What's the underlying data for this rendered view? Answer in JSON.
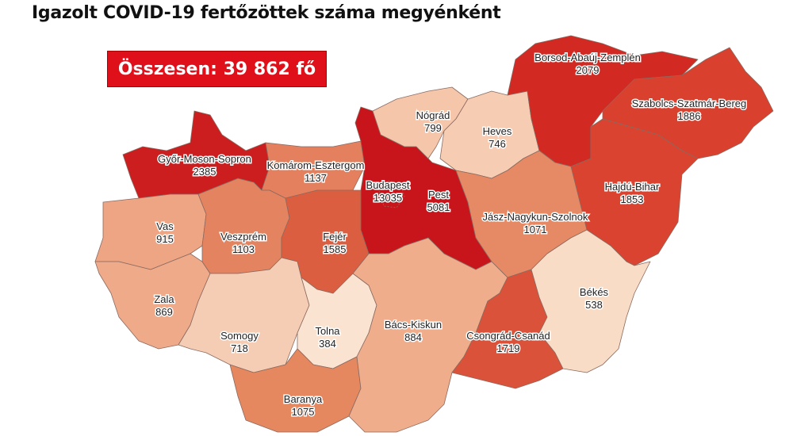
{
  "title": "Igazolt COVID-19 fertőzöttek száma megyénként",
  "total_label": "Összesen: 39 862 fő",
  "accent_color": "#e0101a",
  "regions": [
    {
      "name": "Győr-Moson-Sopron",
      "value": "2385",
      "color": "#cc1d1f"
    },
    {
      "name": "Komárom-Esztergom",
      "value": "1137",
      "color": "#e4805d"
    },
    {
      "name": "Pest",
      "value": "5081",
      "color": "#c8151c"
    },
    {
      "name": "Budapest",
      "value": "13035",
      "color": "#c8151c"
    },
    {
      "name": "Nógrád",
      "value": "799",
      "color": "#f5c6a9"
    },
    {
      "name": "Heves",
      "value": "746",
      "color": "#f6cdb3"
    },
    {
      "name": "Borsod-Abaúj-Zemplén",
      "value": "2079",
      "color": "#d22a22"
    },
    {
      "name": "Szabolcs-Szatmár-Bereg",
      "value": "1886",
      "color": "#d9402e"
    },
    {
      "name": "Hajdú-Bihar",
      "value": "1853",
      "color": "#d9432f"
    },
    {
      "name": "Jász-Nagykun-Szolnok",
      "value": "1071",
      "color": "#e68a66"
    },
    {
      "name": "Vas",
      "value": "915",
      "color": "#eea584"
    },
    {
      "name": "Zala",
      "value": "869",
      "color": "#efaa8a"
    },
    {
      "name": "Veszprém",
      "value": "1103",
      "color": "#e4835f"
    },
    {
      "name": "Fejér",
      "value": "1585",
      "color": "#dc5e40"
    },
    {
      "name": "Somogy",
      "value": "718",
      "color": "#f5cdb4"
    },
    {
      "name": "Tolna",
      "value": "384",
      "color": "#fbe3d2"
    },
    {
      "name": "Baranya",
      "value": "1075",
      "color": "#e5875f"
    },
    {
      "name": "Bács-Kiskun",
      "value": "884",
      "color": "#efad8c"
    },
    {
      "name": "Csongrád-Csanád",
      "value": "1719",
      "color": "#da5239"
    },
    {
      "name": "Békés",
      "value": "538",
      "color": "#f9dcc6"
    }
  ]
}
